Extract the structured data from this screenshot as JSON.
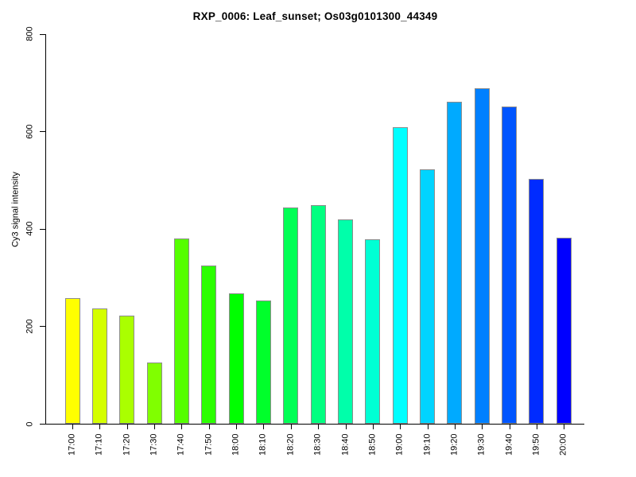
{
  "title": "RXP_0006: Leaf_sunset; Os03g0101300_44349",
  "chart_data": {
    "type": "bar",
    "title": "RXP_0006: Leaf_sunset; Os03g0101300_44349",
    "xlabel": "",
    "ylabel": "Cy3 signal intensity",
    "ylim": [
      0,
      800
    ],
    "yticks": [
      0,
      200,
      400,
      600,
      800
    ],
    "grid": false,
    "legend": false,
    "categories": [
      "17:00",
      "17:10",
      "17:20",
      "17:30",
      "17:40",
      "17:50",
      "18:00",
      "18:10",
      "18:20",
      "18:30",
      "18:40",
      "18:50",
      "19:00",
      "19:10",
      "19:20",
      "19:30",
      "19:40",
      "19:50",
      "20:00"
    ],
    "values": [
      258,
      236,
      221,
      126,
      380,
      324,
      268,
      252,
      443,
      449,
      419,
      378,
      608,
      522,
      661,
      689,
      651,
      502,
      382
    ],
    "bar_colors": [
      "#FFFF00",
      "#D4FF00",
      "#AAFF00",
      "#80FF00",
      "#55FF00",
      "#2BFF00",
      "#00FF00",
      "#00FF2B",
      "#00FF55",
      "#00FF80",
      "#00FFAA",
      "#00FFD4",
      "#00FFFF",
      "#00D4FF",
      "#00AAFF",
      "#0080FF",
      "#0055FF",
      "#002BFF",
      "#0000FF"
    ],
    "bar_border_color": "#8c8c8c",
    "axis_color": "#000000",
    "background_color": "#ffffff"
  }
}
